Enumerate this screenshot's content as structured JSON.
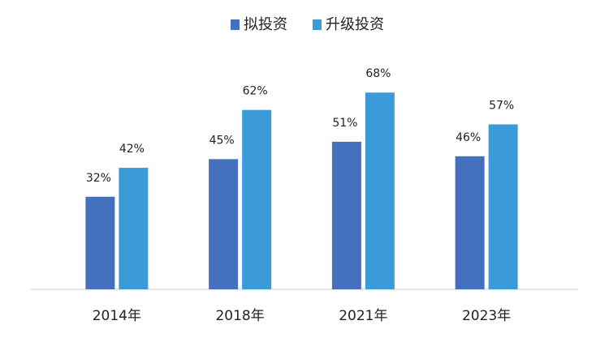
{
  "chart_data": {
    "type": "bar",
    "categories": [
      "2014年",
      "2018年",
      "2021年",
      "2023年"
    ],
    "series": [
      {
        "name": "拟投资",
        "color": "#4570be",
        "values": [
          32,
          45,
          51,
          46
        ],
        "value_labels": [
          "32%",
          "45%",
          "51%",
          "46%"
        ]
      },
      {
        "name": "升级投资",
        "color": "#3a9bd8",
        "values": [
          42,
          62,
          68,
          57
        ],
        "value_labels": [
          "42%",
          "62%",
          "68%",
          "57%"
        ]
      }
    ],
    "legend": "top"
  }
}
